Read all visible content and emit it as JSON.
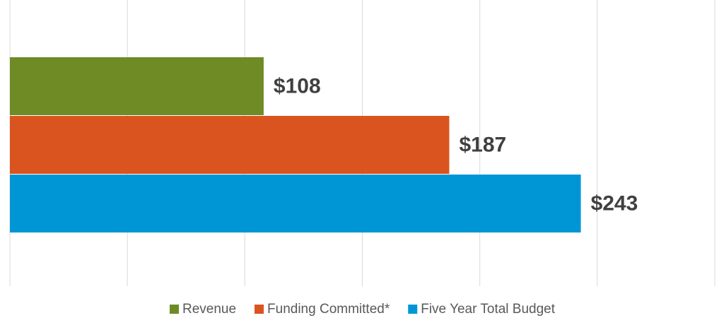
{
  "chart_data": {
    "type": "bar",
    "orientation": "horizontal",
    "categories": [
      null
    ],
    "series": [
      {
        "name": "Revenue",
        "color": "#6e8b26",
        "values": [
          108
        ],
        "value_labels": [
          "$108"
        ]
      },
      {
        "name": "Funding Committed*",
        "color": "#d9541e",
        "values": [
          187
        ],
        "value_labels": [
          "$187"
        ]
      },
      {
        "name": "Five Year Total Budget",
        "color": "#0096d6",
        "values": [
          243
        ],
        "value_labels": [
          "$243"
        ]
      }
    ],
    "xlim": [
      0,
      300
    ],
    "xticks": [
      0,
      50,
      100,
      150,
      200,
      250,
      300
    ],
    "grid": true,
    "legend": "bottom"
  }
}
